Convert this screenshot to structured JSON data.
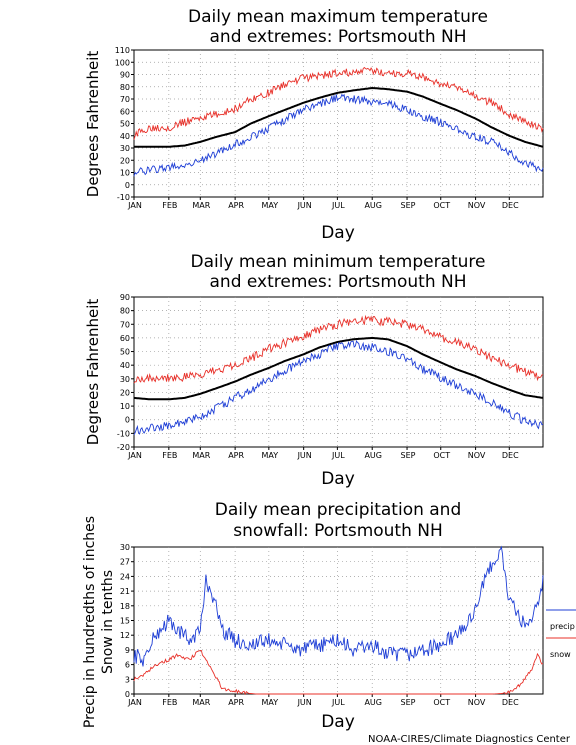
{
  "footer": "NOAA-CIRES/Climate Diagnostics Center",
  "colors": {
    "mean": "#000000",
    "high": "#e8312a",
    "low": "#1f3fd6",
    "grid": "#9a9a9a"
  },
  "chart_data": [
    {
      "type": "line",
      "title_line1": "Daily mean maximum temperature",
      "title_line2": "and extremes: Portsmouth NH",
      "xlabel": "Day",
      "ylabel": "Degrees Fahrenheit",
      "ylim": [
        -10,
        110
      ],
      "yticks": [
        -10,
        0,
        10,
        20,
        30,
        40,
        50,
        60,
        70,
        80,
        90,
        100,
        110
      ],
      "x_ticks": [
        "JAN",
        "FEB",
        "MAR",
        "APR",
        "MAY",
        "JUN",
        "JUL",
        "AUG",
        "SEP",
        "OCT",
        "NOV",
        "DEC"
      ],
      "grid": true,
      "series": [
        {
          "key": "mean",
          "color": "#000000",
          "x": [
            1,
            15,
            32,
            46,
            60,
            74,
            91,
            105,
            121,
            135,
            152,
            166,
            182,
            196,
            213,
            227,
            244,
            258,
            274,
            288,
            305,
            319,
            335,
            349,
            365
          ],
          "values": [
            31,
            31,
            31,
            32,
            35,
            39,
            43,
            50,
            56,
            61,
            67,
            71,
            75,
            77,
            79,
            78,
            76,
            72,
            66,
            61,
            54,
            47,
            40,
            35,
            31
          ]
        },
        {
          "key": "high",
          "color": "#e8312a",
          "x": [
            1,
            15,
            32,
            46,
            60,
            74,
            91,
            105,
            121,
            135,
            152,
            166,
            182,
            196,
            213,
            227,
            244,
            258,
            274,
            288,
            305,
            319,
            335,
            349,
            365
          ],
          "values": [
            40,
            47,
            47,
            51,
            55,
            57,
            62,
            70,
            75,
            82,
            87,
            89,
            91,
            92,
            93,
            91,
            91,
            88,
            82,
            79,
            72,
            67,
            58,
            52,
            44
          ]
        },
        {
          "key": "low",
          "color": "#1f3fd6",
          "x": [
            1,
            15,
            32,
            46,
            60,
            74,
            91,
            105,
            121,
            135,
            152,
            166,
            182,
            196,
            213,
            227,
            244,
            258,
            274,
            288,
            305,
            319,
            335,
            349,
            365
          ],
          "values": [
            10,
            12,
            14,
            16,
            20,
            25,
            33,
            39,
            46,
            53,
            62,
            66,
            71,
            70,
            68,
            66,
            61,
            56,
            51,
            45,
            39,
            35,
            26,
            18,
            12
          ]
        }
      ]
    },
    {
      "type": "line",
      "title_line1": "Daily mean minimum temperature",
      "title_line2": "and extremes: Portsmouth NH",
      "xlabel": "Day",
      "ylabel": "Degrees Fahrenheit",
      "ylim": [
        -20,
        90
      ],
      "yticks": [
        -20,
        -10,
        0,
        10,
        20,
        30,
        40,
        50,
        60,
        70,
        80,
        90
      ],
      "x_ticks": [
        "JAN",
        "FEB",
        "MAR",
        "APR",
        "MAY",
        "JUN",
        "JUL",
        "AUG",
        "SEP",
        "OCT",
        "NOV",
        "DEC"
      ],
      "grid": true,
      "series": [
        {
          "key": "mean",
          "color": "#000000",
          "x": [
            1,
            15,
            32,
            46,
            60,
            74,
            91,
            105,
            121,
            135,
            152,
            166,
            182,
            196,
            213,
            227,
            244,
            258,
            274,
            288,
            305,
            319,
            335,
            349,
            365
          ],
          "values": [
            16,
            15,
            15,
            16,
            19,
            23,
            28,
            33,
            38,
            43,
            48,
            53,
            57,
            59,
            60,
            59,
            54,
            48,
            42,
            37,
            32,
            27,
            22,
            18,
            16
          ]
        },
        {
          "key": "high",
          "color": "#e8312a",
          "x": [
            1,
            15,
            32,
            46,
            60,
            74,
            91,
            105,
            121,
            135,
            152,
            166,
            182,
            196,
            213,
            227,
            244,
            258,
            274,
            288,
            305,
            319,
            335,
            349,
            365
          ],
          "values": [
            30,
            31,
            31,
            31,
            33,
            36,
            41,
            45,
            52,
            56,
            62,
            66,
            70,
            72,
            73,
            72,
            70,
            66,
            60,
            57,
            51,
            46,
            40,
            35,
            31
          ]
        },
        {
          "key": "low",
          "color": "#1f3fd6",
          "x": [
            1,
            15,
            32,
            46,
            60,
            74,
            91,
            105,
            121,
            135,
            152,
            166,
            182,
            196,
            213,
            227,
            244,
            258,
            274,
            288,
            305,
            319,
            335,
            349,
            365
          ],
          "values": [
            -8,
            -6,
            -4,
            -2,
            2,
            8,
            16,
            22,
            29,
            36,
            43,
            48,
            54,
            55,
            53,
            50,
            44,
            37,
            31,
            25,
            19,
            13,
            5,
            -1,
            -5
          ]
        }
      ]
    },
    {
      "type": "line",
      "title_line1": "Daily mean precipitation and",
      "title_line2": "snowfall: Portsmouth NH",
      "xlabel": "Day",
      "ylabel_line1": "Precip in hundredths of inches",
      "ylabel_line2": "Snow in tenths",
      "ylim": [
        0,
        30
      ],
      "yticks": [
        0,
        3,
        6,
        9,
        12,
        15,
        18,
        21,
        24,
        27,
        30
      ],
      "x_ticks": [
        "JAN",
        "FEB",
        "MAR",
        "APR",
        "MAY",
        "JUN",
        "JUL",
        "AUG",
        "SEP",
        "OCT",
        "NOV",
        "DEC"
      ],
      "grid": true,
      "series": [
        {
          "key": "precip",
          "name": "precip",
          "color": "#1f3fd6",
          "x": [
            1,
            10,
            20,
            32,
            40,
            50,
            60,
            65,
            70,
            80,
            91,
            105,
            121,
            135,
            152,
            166,
            182,
            196,
            213,
            227,
            244,
            258,
            274,
            288,
            300,
            310,
            320,
            328,
            335,
            345,
            355,
            365
          ],
          "values": [
            8,
            7,
            12,
            15,
            13,
            11,
            13,
            23,
            21,
            13,
            11,
            10,
            11,
            10,
            9,
            10,
            11,
            9,
            10,
            8,
            8,
            9,
            10,
            12,
            15,
            21,
            27,
            29,
            19,
            15,
            14,
            23
          ]
        },
        {
          "key": "snow",
          "name": "snow",
          "color": "#e8312a",
          "x": [
            1,
            10,
            20,
            32,
            40,
            50,
            55,
            60,
            65,
            70,
            75,
            80,
            91,
            100,
            110,
            121,
            182,
            244,
            274,
            288,
            300,
            310,
            320,
            328,
            335,
            345,
            355,
            360,
            365
          ],
          "values": [
            3,
            4,
            6,
            7,
            8,
            7,
            8,
            9,
            7,
            5,
            3,
            1,
            0.6,
            0.2,
            0,
            0,
            0,
            0,
            0,
            0,
            0,
            0,
            0,
            0.1,
            0.3,
            2,
            5,
            8,
            6
          ]
        }
      ]
    }
  ]
}
